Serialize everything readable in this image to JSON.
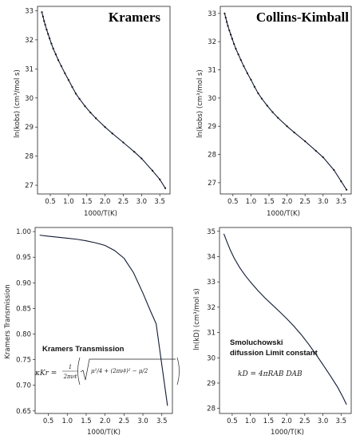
{
  "chart_data": [
    {
      "type": "line",
      "title": "Kramers",
      "xlabel": "1000/T(K)",
      "ylabel": "ln(kobs) (cm³/mol s)",
      "xlim": [
        0.15,
        3.78
      ],
      "ylim": [
        26.7,
        33.15
      ],
      "xticks": [
        "0.5",
        "1.0",
        "1.5",
        "2.0",
        "2.5",
        "3.0",
        "3.5"
      ],
      "yticks": [
        "27",
        "28",
        "29",
        "30",
        "31",
        "32",
        "33"
      ],
      "markers": true,
      "x": [
        0.27,
        0.3,
        0.33,
        0.36,
        0.4,
        0.44,
        0.48,
        0.53,
        0.58,
        0.65,
        0.72,
        0.8,
        0.9,
        1.0,
        1.1,
        1.2,
        1.3,
        1.45,
        1.6,
        1.75,
        2.0,
        2.2,
        2.5,
        2.8,
        3.0,
        3.3,
        3.5,
        3.65
      ],
      "y": [
        32.95,
        32.8,
        32.65,
        32.52,
        32.35,
        32.2,
        32.05,
        31.87,
        31.7,
        31.5,
        31.3,
        31.1,
        30.85,
        30.62,
        30.38,
        30.15,
        29.97,
        29.72,
        29.5,
        29.3,
        29.0,
        28.78,
        28.47,
        28.15,
        27.92,
        27.5,
        27.2,
        26.9
      ]
    },
    {
      "type": "line",
      "title": "Collins-Kimball",
      "xlabel": "1000/T(K)",
      "ylabel": "ln(kobs) (cm³/mol s)",
      "xlim": [
        0.15,
        3.78
      ],
      "ylim": [
        26.6,
        33.25
      ],
      "xticks": [
        "0.5",
        "1.0",
        "1.5",
        "2.0",
        "2.5",
        "3.0",
        "3.5"
      ],
      "yticks": [
        "27",
        "28",
        "29",
        "30",
        "31",
        "32",
        "33"
      ],
      "markers": true,
      "x": [
        0.27,
        0.3,
        0.33,
        0.36,
        0.4,
        0.44,
        0.48,
        0.53,
        0.58,
        0.65,
        0.72,
        0.8,
        0.9,
        1.0,
        1.1,
        1.2,
        1.3,
        1.45,
        1.6,
        1.75,
        2.0,
        2.2,
        2.5,
        2.8,
        3.0,
        3.3,
        3.5,
        3.65
      ],
      "y": [
        33.0,
        32.85,
        32.7,
        32.56,
        32.4,
        32.25,
        32.1,
        31.92,
        31.75,
        31.55,
        31.35,
        31.13,
        30.88,
        30.65,
        30.4,
        30.17,
        29.98,
        29.73,
        29.5,
        29.3,
        29.0,
        28.78,
        28.47,
        28.13,
        27.9,
        27.45,
        27.05,
        26.75
      ]
    },
    {
      "type": "line",
      "title": "",
      "xlabel": "1000/T(K)",
      "ylabel": "Kramers Transmission",
      "xlim": [
        0.15,
        3.78
      ],
      "ylim": [
        0.645,
        1.008
      ],
      "xticks": [
        "0.5",
        "1.0",
        "1.5",
        "2.0",
        "2.5",
        "3.0",
        "3.5"
      ],
      "yticks": [
        "0.65",
        "0.70",
        "0.75",
        "0.80",
        "0.85",
        "0.90",
        "0.95",
        "1.00"
      ],
      "yticks_values": [
        0.65,
        0.7,
        0.75,
        0.8,
        0.85,
        0.9,
        0.95,
        1.0
      ],
      "markers": false,
      "x": [
        0.27,
        0.5,
        0.75,
        1.0,
        1.25,
        1.5,
        1.75,
        2.0,
        2.25,
        2.5,
        2.75,
        3.0,
        3.2,
        3.35,
        3.5,
        3.65
      ],
      "y": [
        0.993,
        0.991,
        0.989,
        0.987,
        0.985,
        0.982,
        0.978,
        0.973,
        0.963,
        0.948,
        0.92,
        0.88,
        0.845,
        0.82,
        0.74,
        0.66
      ],
      "annotation": {
        "label": "Kramers Transmission",
        "formula_lhs": "κKr =",
        "frac_num": "1",
        "frac_den": "2πν‡",
        "sqrt_term": "μ²/4 + (2πν‡)² − μ/2"
      }
    },
    {
      "type": "line",
      "title": "",
      "xlabel": "1000/T(K)",
      "ylabel": "ln(kD) (cm³/mol s)",
      "xlim": [
        0.15,
        3.78
      ],
      "ylim": [
        27.8,
        35.15
      ],
      "xticks": [
        "0.5",
        "1.0",
        "1.5",
        "2.0",
        "2.5",
        "3.0",
        "3.5"
      ],
      "yticks": [
        "28",
        "29",
        "30",
        "31",
        "32",
        "33",
        "34",
        "35"
      ],
      "markers": false,
      "x": [
        0.27,
        0.35,
        0.45,
        0.55,
        0.7,
        0.85,
        1.0,
        1.2,
        1.4,
        1.6,
        1.8,
        2.0,
        2.2,
        2.4,
        2.6,
        2.8,
        3.0,
        3.2,
        3.4,
        3.55,
        3.65
      ],
      "y": [
        34.9,
        34.6,
        34.25,
        33.95,
        33.58,
        33.27,
        33.0,
        32.67,
        32.37,
        32.1,
        31.83,
        31.55,
        31.25,
        30.92,
        30.55,
        30.15,
        29.73,
        29.3,
        28.85,
        28.45,
        28.15
      ],
      "annotation": {
        "label_line1": "Smoluchowski",
        "label_line2": "difussion Limit constant",
        "formula": "kD = 4πRAB DAB"
      }
    }
  ]
}
